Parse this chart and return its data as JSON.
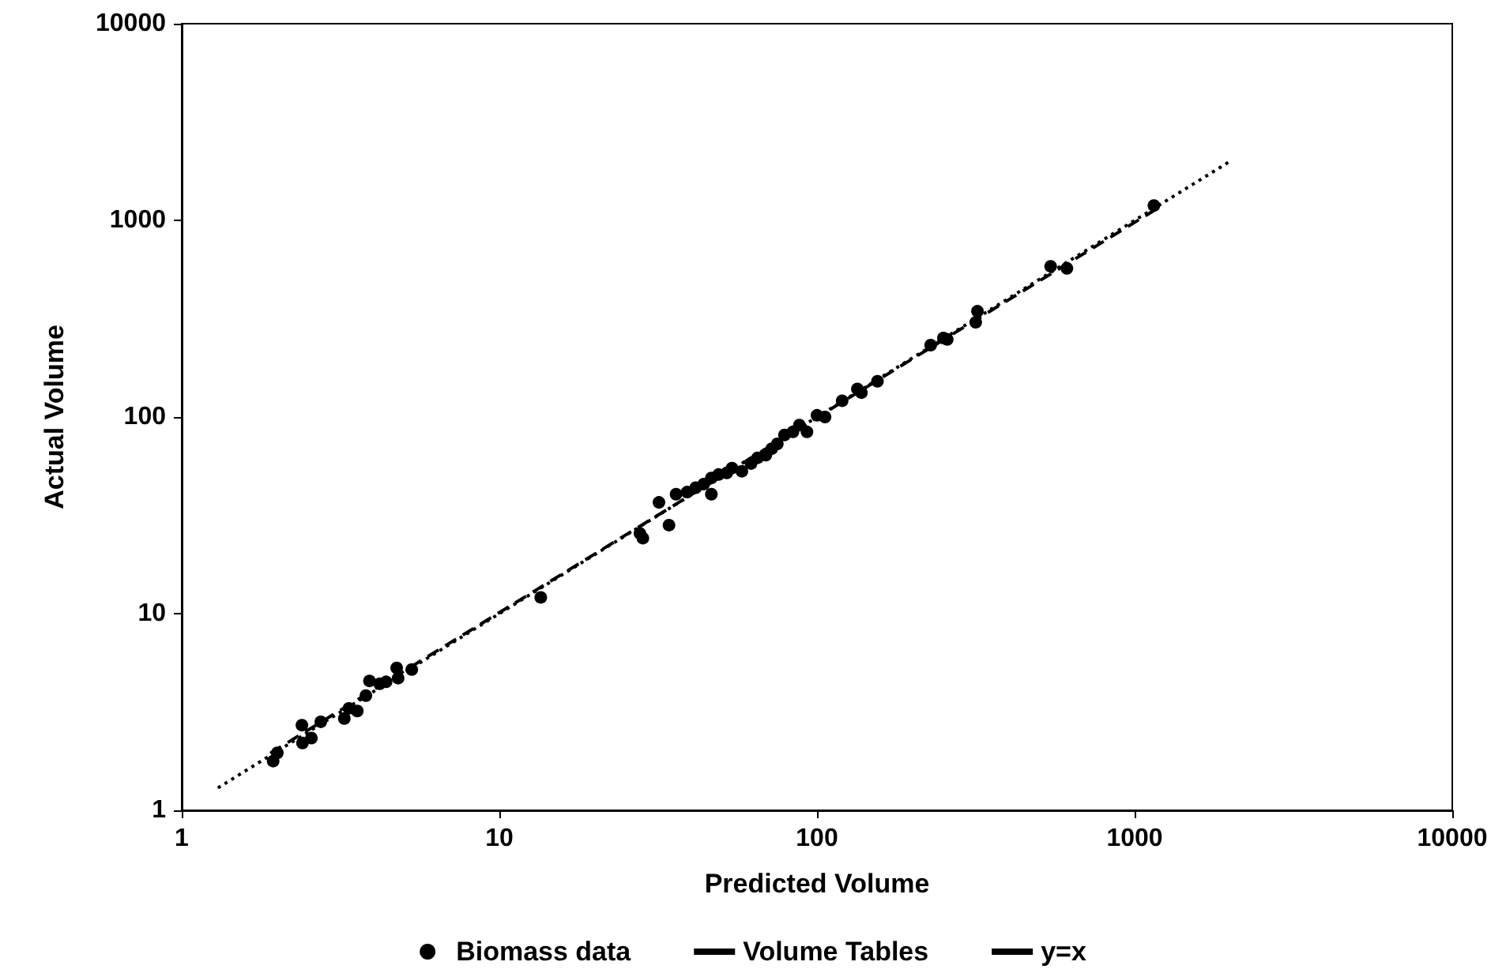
{
  "chart_data": {
    "type": "scatter",
    "xlabel": "Predicted Volume",
    "ylabel": "Actual Volume",
    "log": "xy",
    "grid": false,
    "legend": "bottom",
    "xlim": [
      1,
      10000
    ],
    "xticks": [
      1,
      10,
      100,
      1000,
      10000
    ],
    "ylim": [
      1,
      10000
    ],
    "yticks": [
      1,
      10,
      100,
      1000,
      10000
    ],
    "series": [
      {
        "name": "Biomass data",
        "marker": "circle",
        "color": "#000000",
        "x": [
          1.94,
          2.0,
          2.39,
          2.4,
          2.56,
          2.74,
          3.25,
          3.36,
          3.57,
          3.8,
          3.9,
          4.2,
          4.4,
          4.75,
          4.8,
          5.3,
          13.5,
          27.7,
          28.3,
          34.2,
          31.8,
          36,
          39,
          41.5,
          44,
          46.5,
          46.5,
          49,
          52,
          54,
          58,
          62,
          65,
          69,
          72,
          75,
          79,
          84,
          88,
          93,
          100,
          106,
          120,
          134,
          138,
          155,
          228,
          250,
          257,
          316,
          320,
          544,
          612,
          1150
        ],
        "values": [
          1.78,
          1.96,
          2.71,
          2.2,
          2.33,
          2.82,
          2.93,
          3.3,
          3.2,
          3.83,
          4.55,
          4.4,
          4.5,
          5.3,
          4.7,
          5.2,
          12.1,
          25.6,
          24.2,
          28.2,
          36.8,
          40.5,
          41.5,
          43.7,
          45.6,
          40.5,
          49,
          51,
          52,
          55,
          53,
          58,
          62,
          64,
          69,
          73,
          81,
          84,
          91,
          84,
          102,
          100,
          121,
          139,
          133,
          152,
          232,
          252,
          248,
          303,
          345,
          584,
          570,
          1190
        ]
      },
      {
        "name": "Volume Tables",
        "type": "line",
        "line_style": "dashed",
        "marker": "none",
        "color": "#000000",
        "x": [
          1.9,
          1200
        ],
        "values": [
          1.95,
          1170
        ]
      },
      {
        "name": "y=x",
        "type": "line",
        "line_style": "dotted",
        "marker": "none",
        "color": "#000000",
        "x": [
          1.3,
          2000
        ],
        "values": [
          1.3,
          2000
        ]
      }
    ]
  }
}
